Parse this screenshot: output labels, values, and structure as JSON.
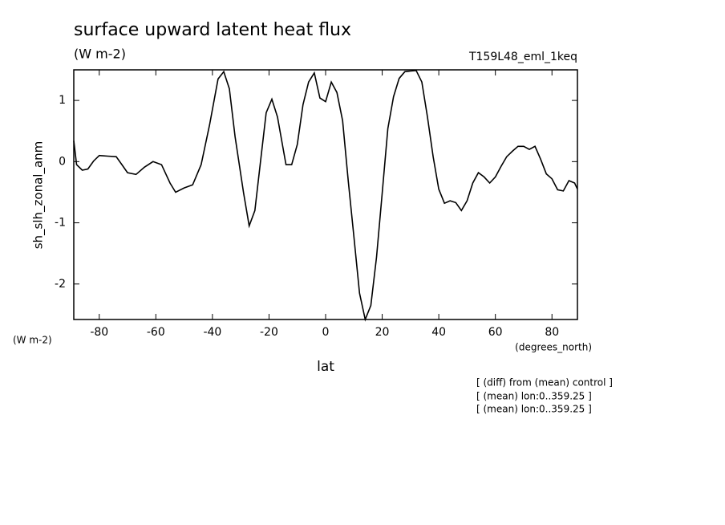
{
  "chart_data": {
    "type": "line",
    "title": "surface upward latent heat flux",
    "subtitle": "(W m-2)",
    "run_label": "T159L48_eml_1keq",
    "y_axis_label": "sh_slh_zonal_anm",
    "y_units": "(W m-2)",
    "x_units": "(degrees_north)",
    "x_axis_label": "lat",
    "notes": [
      "[ (diff) from (mean) control ]",
      "[ (mean) lon:0..359.25 ]",
      "[ (mean) lon:0..359.25 ]"
    ],
    "color": "#000000",
    "x": [
      -89,
      -88,
      -86,
      -84,
      -82,
      -80,
      -77,
      -74,
      -72,
      -70,
      -67,
      -64,
      -61,
      -58,
      -55,
      -53,
      -50,
      -47,
      -44,
      -41,
      -38,
      -36,
      -34,
      -32,
      -29,
      -27,
      -25,
      -23,
      -21,
      -19,
      -17,
      -14,
      -12,
      -10,
      -8,
      -6,
      -4,
      -2,
      0,
      2,
      4,
      6,
      8,
      10,
      12,
      14,
      16,
      18,
      20,
      22,
      24,
      26,
      28,
      30,
      32,
      34,
      36,
      38,
      40,
      42,
      44,
      46,
      48,
      50,
      52,
      54,
      56,
      58,
      60,
      62,
      64,
      66,
      68,
      70,
      72,
      74,
      76,
      78,
      80,
      82,
      84,
      86,
      88,
      89
    ],
    "values": [
      0.34,
      -0.05,
      -0.14,
      -0.12,
      0.01,
      0.1,
      0.09,
      0.08,
      -0.05,
      -0.18,
      -0.21,
      -0.09,
      0,
      -0.05,
      -0.35,
      -0.5,
      -0.43,
      -0.38,
      -0.05,
      0.6,
      1.35,
      1.47,
      1.19,
      0.41,
      -0.51,
      -1.05,
      -0.8,
      0.01,
      0.8,
      1.02,
      0.73,
      -0.05,
      -0.05,
      0.28,
      0.93,
      1.3,
      1.45,
      1.04,
      0.98,
      1.3,
      1.13,
      0.67,
      -0.31,
      -1.23,
      -2.15,
      -2.58,
      -2.35,
      -1.56,
      -0.51,
      0.54,
      1.06,
      1.36,
      1.47,
      1.48,
      1.49,
      1.3,
      0.73,
      0.08,
      -0.45,
      -0.68,
      -0.64,
      -0.67,
      -0.8,
      -0.64,
      -0.35,
      -0.18,
      -0.25,
      -0.35,
      -0.25,
      -0.08,
      0.08,
      0.17,
      0.25,
      0.25,
      0.2,
      0.25,
      0.04,
      -0.2,
      -0.28,
      -0.46,
      -0.48,
      -0.31,
      -0.35,
      -0.45
    ],
    "xlim": [
      -89,
      89
    ],
    "xticks": [
      -80,
      -60,
      -40,
      -20,
      0,
      20,
      40,
      60,
      80
    ],
    "ylim": [
      -2.58,
      1.5
    ],
    "yticks": [
      -2,
      -1,
      0,
      1
    ]
  }
}
